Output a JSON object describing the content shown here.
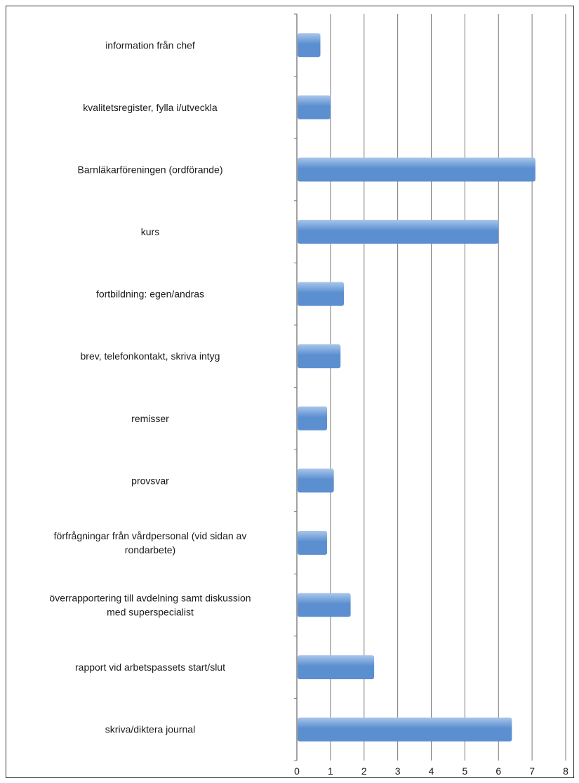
{
  "chart_data": {
    "type": "bar",
    "orientation": "horizontal",
    "categories": [
      "information från chef",
      "kvalitetsregister, fylla i/utveckla",
      "Barnläkarföreningen (ordförande)",
      "kurs",
      "fortbildning: egen/andras",
      "brev, telefonkontakt, skriva intyg",
      "remisser",
      "provsvar",
      "förfrågningar från vårdpersonal (vid sidan av rondarbete)",
      "överrapportering till avdelning samt diskussion med superspecialist",
      "rapport vid arbetspassets start/slut",
      "skriva/diktera journal"
    ],
    "category_lines": [
      [
        "information från chef"
      ],
      [
        "kvalitetsregister, fylla i/utveckla"
      ],
      [
        "Barnläkarföreningen (ordförande)"
      ],
      [
        "kurs"
      ],
      [
        "fortbildning: egen/andras"
      ],
      [
        "brev, telefonkontakt, skriva intyg"
      ],
      [
        "remisser"
      ],
      [
        "provsvar"
      ],
      [
        "förfrågningar från vårdpersonal (vid sidan av",
        "rondarbete)"
      ],
      [
        "överrapportering till avdelning samt diskussion",
        "med superspecialist"
      ],
      [
        "rapport vid arbetspassets start/slut"
      ],
      [
        "skriva/diktera journal"
      ]
    ],
    "values": [
      0.7,
      1.0,
      7.1,
      6.0,
      1.4,
      1.3,
      0.9,
      1.1,
      0.9,
      1.6,
      2.3,
      6.4
    ],
    "xlim": [
      0,
      8
    ],
    "xticks": [
      "0",
      "1",
      "2",
      "3",
      "4",
      "5",
      "6",
      "7",
      "8"
    ],
    "grid": "vertical",
    "legend": "none",
    "bar_color": "#5b8fd0",
    "bar_color_light": "#a9c6ec",
    "grid_color": "#7a7a7a"
  }
}
